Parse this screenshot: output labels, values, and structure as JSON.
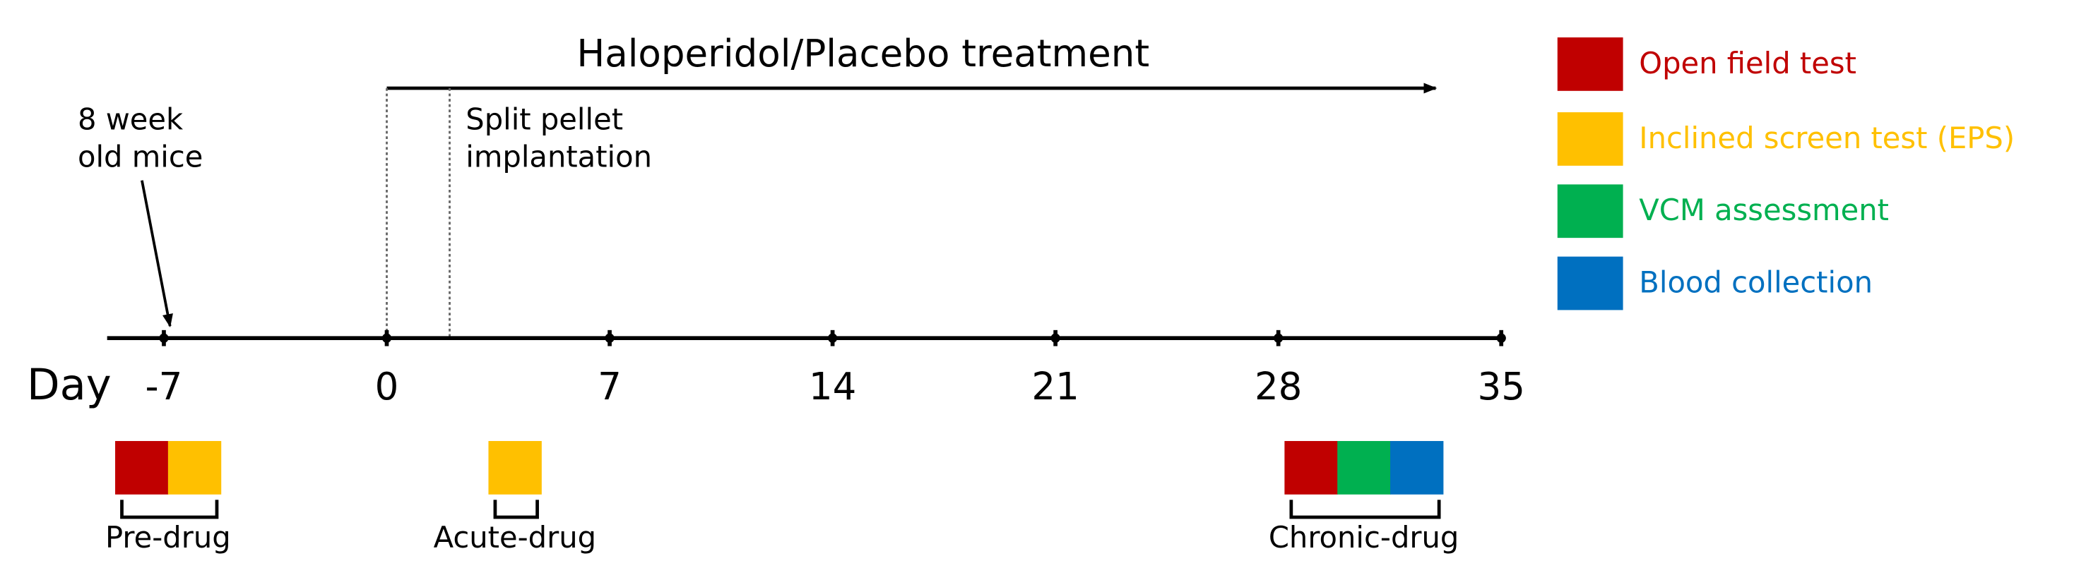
{
  "title": "Haloperidol/Placebo treatment",
  "axis_label": "Day",
  "ticks": [
    -7,
    0,
    7,
    14,
    21,
    28,
    35
  ],
  "annotations": [
    {
      "lines": [
        "8 week",
        "old mice"
      ]
    },
    {
      "lines": [
        "Split pellet",
        "implantation"
      ]
    }
  ],
  "legend": [
    {
      "label": "Open field test",
      "color": "#c00000"
    },
    {
      "label": "Inclined screen test (EPS)",
      "color": "#ffc000"
    },
    {
      "label": "VCM assessment",
      "color": "#00b050"
    },
    {
      "label": "Blood collection",
      "color": "#0070c0"
    }
  ],
  "groups": [
    {
      "label": "Pre-drug",
      "blocks": [
        "#c00000",
        "#ffc000"
      ]
    },
    {
      "label": "Acute-drug",
      "blocks": [
        "#ffc000"
      ]
    },
    {
      "label": "Chronic-drug",
      "blocks": [
        "#c00000",
        "#00b050",
        "#0070c0"
      ]
    }
  ]
}
